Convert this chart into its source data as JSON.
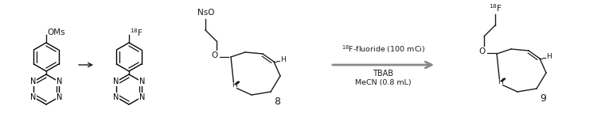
{
  "bg_color": "#ffffff",
  "figsize": [
    7.7,
    1.58
  ],
  "dpi": 100,
  "reaction_arrow_label_top": "$^{18}$F-fluoride (100 mCi)",
  "reaction_arrow_label_mid": "TBAB",
  "reaction_arrow_label_bot": "MeCN (0.8 mL)",
  "compound8": "8",
  "compound9": "9",
  "OMs_text": "OMs",
  "NsO_text": "NsO",
  "F18_1": "$^{18}$F",
  "F18_2": "$^{18}$F",
  "line_color": "#1a1a1a",
  "gray_arrow": "#888888"
}
